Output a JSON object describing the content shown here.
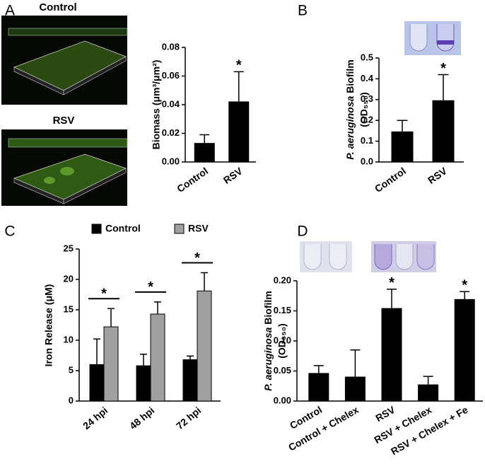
{
  "chart_data": [
    {
      "type": "bar",
      "panel_label": "A",
      "image_labels": [
        "Control",
        "RSV"
      ],
      "ylabel": "Biomass (μm³/μm²)",
      "categories": [
        "Control",
        "RSV"
      ],
      "values": [
        0.013,
        0.042
      ],
      "errors": [
        0.006,
        0.021
      ],
      "color": "#000000",
      "ylim": [
        0,
        0.08
      ],
      "yticks": [
        {
          "value": 0,
          "label": "0.00"
        },
        0.02,
        0.04,
        0.06,
        0.08
      ],
      "annotations": [
        {
          "text": "*",
          "x": "RSV"
        }
      ]
    },
    {
      "type": "bar",
      "panel_label": "B",
      "ylabel_italic": "P. aeruginosa",
      "ylabel": "Biofilm",
      "ylabel_unit": "(OD₅₅₀)",
      "categories": [
        "Control",
        "RSV"
      ],
      "values": [
        0.145,
        0.295
      ],
      "errors": [
        0.055,
        0.125
      ],
      "color": "#000000",
      "ylim": [
        0,
        0.5
      ],
      "yticks": [
        {
          "value": 0,
          "label": "0.0"
        },
        0.1,
        0.2,
        0.3,
        0.4,
        0.5
      ],
      "annotations": [
        {
          "text": "*",
          "x": "RSV"
        }
      ]
    },
    {
      "type": "bar",
      "panel_label": "C",
      "ylabel": "Iron Release (μM)",
      "categories": [
        "24 hpi",
        "48 hpi",
        "72 hpi"
      ],
      "series": [
        {
          "name": "Control",
          "color": "#000000",
          "values": [
            6.0,
            5.8,
            6.8
          ],
          "errors": [
            4.2,
            1.9,
            0.6
          ]
        },
        {
          "name": "RSV",
          "color": "#a0a0a0",
          "values": [
            12.2,
            14.3,
            18.1
          ],
          "errors": [
            3.0,
            2.0,
            3.0
          ]
        }
      ],
      "ylim": [
        0,
        25
      ],
      "yticks": [
        0,
        5,
        10,
        15,
        20,
        25
      ],
      "legend": "top",
      "annotations": [
        {
          "text": "*",
          "x": "24 hpi"
        },
        {
          "text": "*",
          "x": "48 hpi"
        },
        {
          "text": "*",
          "x": "72 hpi"
        }
      ]
    },
    {
      "type": "bar",
      "panel_label": "D",
      "ylabel_italic": "P. aeruginosa",
      "ylabel": "Biofilm",
      "ylabel_unit": "(OD₅₅₀)",
      "categories": [
        "Control",
        "Control + Chelex",
        "RSV",
        "RSV + Chelex",
        "RSV + Chelex + Fe"
      ],
      "values": [
        0.046,
        0.04,
        0.154,
        0.027,
        0.169
      ],
      "errors": [
        0.013,
        0.045,
        0.032,
        0.014,
        0.013
      ],
      "color": "#000000",
      "ylim": [
        0,
        0.2
      ],
      "yticks": [
        {
          "value": 0,
          "label": "0.00"
        },
        0.05,
        {
          "value": 0.1,
          "label": "0.10"
        },
        0.15,
        {
          "value": 0.2,
          "label": "0.20"
        }
      ],
      "annotations": [
        {
          "text": "*",
          "x": "RSV"
        },
        {
          "text": "*",
          "x": "RSV + Chelex + Fe"
        }
      ]
    }
  ]
}
